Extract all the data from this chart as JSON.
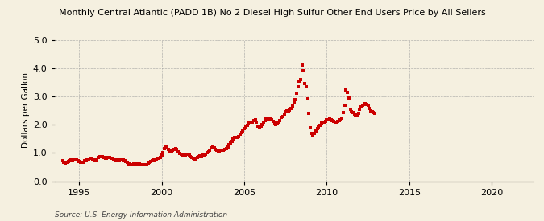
{
  "title": "Monthly Central Atlantic (PADD 1B) No 2 Diesel High Sulfur Other End Users Price by All Sellers",
  "ylabel": "Dollars per Gallon",
  "source": "Source: U.S. Energy Information Administration",
  "background_color": "#f5f0e0",
  "marker_color": "#cc0000",
  "xlim": [
    1993.5,
    2022.5
  ],
  "ylim": [
    0.0,
    5.0
  ],
  "yticks": [
    0.0,
    1.0,
    2.0,
    3.0,
    4.0,
    5.0
  ],
  "xticks": [
    1995,
    2000,
    2005,
    2010,
    2015,
    2020
  ],
  "data": [
    [
      1994.0,
      0.72
    ],
    [
      1994.08,
      0.68
    ],
    [
      1994.17,
      0.65
    ],
    [
      1994.25,
      0.66
    ],
    [
      1994.33,
      0.7
    ],
    [
      1994.42,
      0.72
    ],
    [
      1994.5,
      0.74
    ],
    [
      1994.58,
      0.76
    ],
    [
      1994.67,
      0.78
    ],
    [
      1994.75,
      0.79
    ],
    [
      1994.83,
      0.77
    ],
    [
      1994.92,
      0.73
    ],
    [
      1995.0,
      0.71
    ],
    [
      1995.08,
      0.68
    ],
    [
      1995.17,
      0.67
    ],
    [
      1995.25,
      0.68
    ],
    [
      1995.33,
      0.72
    ],
    [
      1995.42,
      0.75
    ],
    [
      1995.5,
      0.77
    ],
    [
      1995.58,
      0.79
    ],
    [
      1995.67,
      0.8
    ],
    [
      1995.75,
      0.8
    ],
    [
      1995.83,
      0.78
    ],
    [
      1995.92,
      0.75
    ],
    [
      1996.0,
      0.75
    ],
    [
      1996.08,
      0.78
    ],
    [
      1996.17,
      0.83
    ],
    [
      1996.25,
      0.86
    ],
    [
      1996.33,
      0.88
    ],
    [
      1996.42,
      0.86
    ],
    [
      1996.5,
      0.84
    ],
    [
      1996.58,
      0.82
    ],
    [
      1996.67,
      0.82
    ],
    [
      1996.75,
      0.83
    ],
    [
      1996.83,
      0.83
    ],
    [
      1996.92,
      0.82
    ],
    [
      1997.0,
      0.8
    ],
    [
      1997.08,
      0.77
    ],
    [
      1997.17,
      0.74
    ],
    [
      1997.25,
      0.73
    ],
    [
      1997.33,
      0.74
    ],
    [
      1997.42,
      0.76
    ],
    [
      1997.5,
      0.77
    ],
    [
      1997.58,
      0.77
    ],
    [
      1997.67,
      0.76
    ],
    [
      1997.75,
      0.73
    ],
    [
      1997.83,
      0.7
    ],
    [
      1997.92,
      0.66
    ],
    [
      1998.0,
      0.62
    ],
    [
      1998.08,
      0.6
    ],
    [
      1998.17,
      0.59
    ],
    [
      1998.25,
      0.59
    ],
    [
      1998.33,
      0.6
    ],
    [
      1998.42,
      0.61
    ],
    [
      1998.5,
      0.61
    ],
    [
      1998.58,
      0.61
    ],
    [
      1998.67,
      0.6
    ],
    [
      1998.75,
      0.59
    ],
    [
      1998.83,
      0.57
    ],
    [
      1998.92,
      0.57
    ],
    [
      1999.0,
      0.57
    ],
    [
      1999.08,
      0.59
    ],
    [
      1999.17,
      0.64
    ],
    [
      1999.25,
      0.68
    ],
    [
      1999.33,
      0.7
    ],
    [
      1999.42,
      0.72
    ],
    [
      1999.5,
      0.74
    ],
    [
      1999.58,
      0.76
    ],
    [
      1999.67,
      0.78
    ],
    [
      1999.75,
      0.8
    ],
    [
      1999.83,
      0.82
    ],
    [
      1999.92,
      0.85
    ],
    [
      2000.0,
      0.92
    ],
    [
      2000.08,
      1.02
    ],
    [
      2000.17,
      1.15
    ],
    [
      2000.25,
      1.2
    ],
    [
      2000.33,
      1.18
    ],
    [
      2000.42,
      1.12
    ],
    [
      2000.5,
      1.07
    ],
    [
      2000.58,
      1.07
    ],
    [
      2000.67,
      1.1
    ],
    [
      2000.75,
      1.13
    ],
    [
      2000.83,
      1.15
    ],
    [
      2000.92,
      1.12
    ],
    [
      2001.0,
      1.05
    ],
    [
      2001.08,
      0.99
    ],
    [
      2001.17,
      0.94
    ],
    [
      2001.25,
      0.92
    ],
    [
      2001.33,
      0.92
    ],
    [
      2001.42,
      0.93
    ],
    [
      2001.5,
      0.94
    ],
    [
      2001.58,
      0.94
    ],
    [
      2001.67,
      0.92
    ],
    [
      2001.75,
      0.88
    ],
    [
      2001.83,
      0.83
    ],
    [
      2001.92,
      0.8
    ],
    [
      2002.0,
      0.78
    ],
    [
      2002.08,
      0.8
    ],
    [
      2002.17,
      0.85
    ],
    [
      2002.25,
      0.88
    ],
    [
      2002.33,
      0.9
    ],
    [
      2002.42,
      0.9
    ],
    [
      2002.5,
      0.91
    ],
    [
      2002.58,
      0.92
    ],
    [
      2002.67,
      0.95
    ],
    [
      2002.75,
      1.0
    ],
    [
      2002.83,
      1.05
    ],
    [
      2002.92,
      1.1
    ],
    [
      2003.0,
      1.18
    ],
    [
      2003.08,
      1.22
    ],
    [
      2003.17,
      1.18
    ],
    [
      2003.25,
      1.12
    ],
    [
      2003.33,
      1.08
    ],
    [
      2003.42,
      1.06
    ],
    [
      2003.5,
      1.07
    ],
    [
      2003.58,
      1.08
    ],
    [
      2003.67,
      1.09
    ],
    [
      2003.75,
      1.1
    ],
    [
      2003.83,
      1.12
    ],
    [
      2003.92,
      1.15
    ],
    [
      2004.0,
      1.22
    ],
    [
      2004.08,
      1.28
    ],
    [
      2004.17,
      1.35
    ],
    [
      2004.25,
      1.42
    ],
    [
      2004.33,
      1.5
    ],
    [
      2004.42,
      1.55
    ],
    [
      2004.5,
      1.55
    ],
    [
      2004.58,
      1.55
    ],
    [
      2004.67,
      1.58
    ],
    [
      2004.75,
      1.65
    ],
    [
      2004.83,
      1.72
    ],
    [
      2004.92,
      1.78
    ],
    [
      2005.0,
      1.85
    ],
    [
      2005.08,
      1.92
    ],
    [
      2005.17,
      1.98
    ],
    [
      2005.25,
      2.05
    ],
    [
      2005.33,
      2.08
    ],
    [
      2005.42,
      2.08
    ],
    [
      2005.5,
      2.1
    ],
    [
      2005.58,
      2.15
    ],
    [
      2005.67,
      2.18
    ],
    [
      2005.75,
      2.08
    ],
    [
      2005.83,
      1.95
    ],
    [
      2005.92,
      1.92
    ],
    [
      2006.0,
      1.95
    ],
    [
      2006.08,
      2.0
    ],
    [
      2006.17,
      2.08
    ],
    [
      2006.25,
      2.15
    ],
    [
      2006.33,
      2.2
    ],
    [
      2006.42,
      2.2
    ],
    [
      2006.5,
      2.2
    ],
    [
      2006.58,
      2.22
    ],
    [
      2006.67,
      2.18
    ],
    [
      2006.75,
      2.12
    ],
    [
      2006.83,
      2.05
    ],
    [
      2006.92,
      2.0
    ],
    [
      2007.0,
      2.05
    ],
    [
      2007.08,
      2.1
    ],
    [
      2007.17,
      2.15
    ],
    [
      2007.25,
      2.25
    ],
    [
      2007.33,
      2.3
    ],
    [
      2007.42,
      2.38
    ],
    [
      2007.5,
      2.45
    ],
    [
      2007.58,
      2.48
    ],
    [
      2007.67,
      2.5
    ],
    [
      2007.75,
      2.52
    ],
    [
      2007.83,
      2.58
    ],
    [
      2007.92,
      2.65
    ],
    [
      2008.0,
      2.8
    ],
    [
      2008.08,
      2.88
    ],
    [
      2008.17,
      3.1
    ],
    [
      2008.25,
      3.35
    ],
    [
      2008.33,
      3.55
    ],
    [
      2008.42,
      3.58
    ],
    [
      2008.5,
      4.1
    ],
    [
      2008.58,
      3.9
    ],
    [
      2008.67,
      3.45
    ],
    [
      2008.75,
      3.35
    ],
    [
      2008.83,
      2.9
    ],
    [
      2008.92,
      2.4
    ],
    [
      2009.0,
      1.9
    ],
    [
      2009.08,
      1.68
    ],
    [
      2009.17,
      1.62
    ],
    [
      2009.25,
      1.7
    ],
    [
      2009.33,
      1.78
    ],
    [
      2009.42,
      1.85
    ],
    [
      2009.5,
      1.92
    ],
    [
      2009.58,
      1.98
    ],
    [
      2009.67,
      2.05
    ],
    [
      2009.75,
      2.08
    ],
    [
      2009.83,
      2.08
    ],
    [
      2009.92,
      2.12
    ],
    [
      2010.0,
      2.18
    ],
    [
      2010.08,
      2.18
    ],
    [
      2010.17,
      2.2
    ],
    [
      2010.25,
      2.18
    ],
    [
      2010.33,
      2.15
    ],
    [
      2010.42,
      2.12
    ],
    [
      2010.5,
      2.08
    ],
    [
      2010.58,
      2.1
    ],
    [
      2010.67,
      2.12
    ],
    [
      2010.75,
      2.15
    ],
    [
      2010.83,
      2.18
    ],
    [
      2010.92,
      2.22
    ],
    [
      2011.0,
      2.42
    ],
    [
      2011.08,
      2.68
    ],
    [
      2011.17,
      3.22
    ],
    [
      2011.25,
      3.15
    ],
    [
      2011.33,
      2.95
    ],
    [
      2011.42,
      2.55
    ],
    [
      2011.5,
      2.45
    ],
    [
      2011.58,
      2.42
    ],
    [
      2011.67,
      2.38
    ],
    [
      2011.75,
      2.35
    ],
    [
      2011.83,
      2.35
    ],
    [
      2011.92,
      2.4
    ],
    [
      2012.0,
      2.55
    ],
    [
      2012.08,
      2.62
    ],
    [
      2012.17,
      2.68
    ],
    [
      2012.25,
      2.72
    ],
    [
      2012.33,
      2.75
    ],
    [
      2012.42,
      2.72
    ],
    [
      2012.5,
      2.68
    ],
    [
      2012.58,
      2.58
    ],
    [
      2012.67,
      2.5
    ],
    [
      2012.75,
      2.45
    ],
    [
      2012.83,
      2.42
    ],
    [
      2012.92,
      2.4
    ]
  ]
}
